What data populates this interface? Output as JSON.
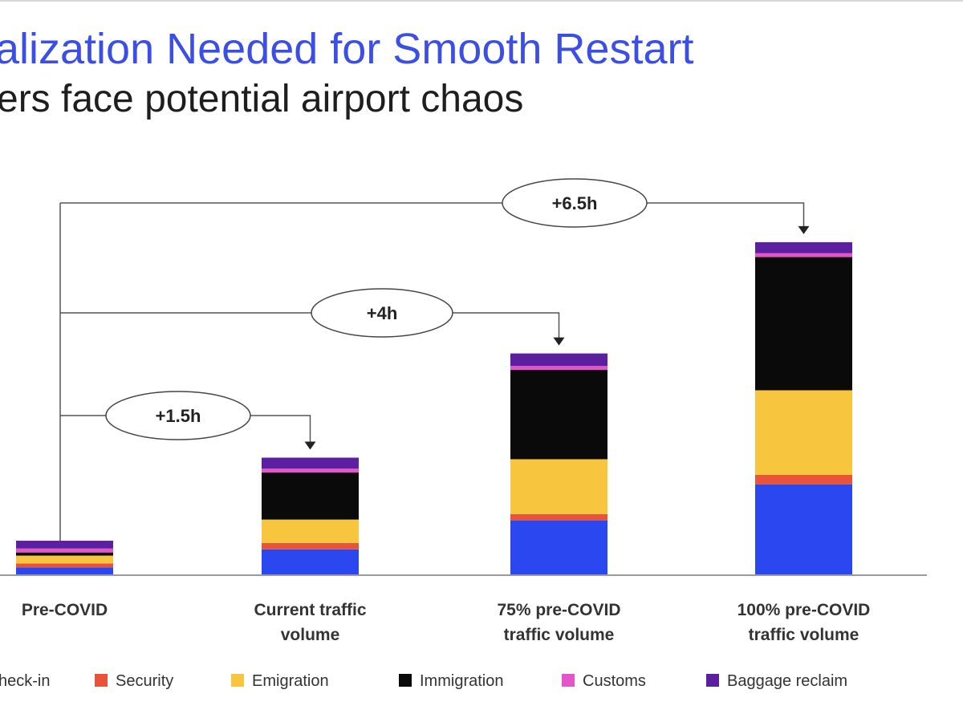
{
  "header": {
    "title": "alization Needed for Smooth Restart",
    "subtitle": "ers face potential airport chaos"
  },
  "chart_data": {
    "type": "bar",
    "stacked": true,
    "categories": [
      [
        "Pre-COVID"
      ],
      [
        "Current traffic",
        "volume"
      ],
      [
        "75% pre-COVID",
        "traffic volume"
      ],
      [
        "100% pre-COVID",
        "traffic volume"
      ]
    ],
    "ylim": [
      0,
      43
    ],
    "series": [
      {
        "name": "heck-in",
        "color": "#2a47f0",
        "values": [
          1.0,
          3.3,
          7.0,
          11.6
        ]
      },
      {
        "name": "Security",
        "color": "#e9533a",
        "values": [
          0.5,
          0.8,
          0.8,
          1.2
        ]
      },
      {
        "name": "Emigration",
        "color": "#f8c63e",
        "values": [
          1.0,
          3.0,
          7.0,
          10.8
        ]
      },
      {
        "name": "Immigration",
        "color": "#0a0a0a",
        "values": [
          0.4,
          6.0,
          11.4,
          17.0
        ]
      },
      {
        "name": "Customs",
        "color": "#e455c8",
        "values": [
          0.5,
          0.5,
          0.5,
          0.5
        ]
      },
      {
        "name": "Baggage reclaim",
        "color": "#5b1fa0",
        "values": [
          1.0,
          1.4,
          1.6,
          1.4
        ]
      }
    ],
    "annotations": [
      {
        "label": "+1.5h",
        "from": 0,
        "to": 1
      },
      {
        "label": "+4h",
        "from": 0,
        "to": 2
      },
      {
        "label": "+6.5h",
        "from": 0,
        "to": 3
      }
    ]
  }
}
